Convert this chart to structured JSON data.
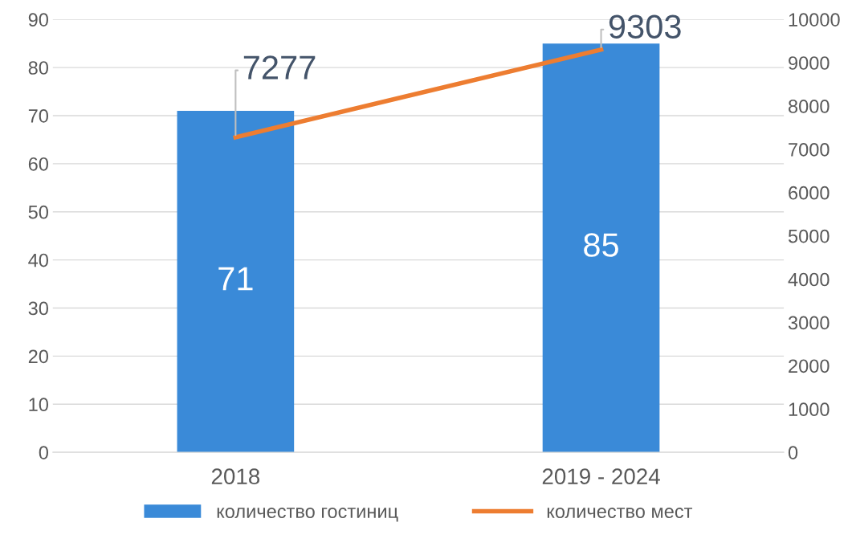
{
  "chart_data": {
    "type": "bar",
    "categories": [
      "2018",
      "2019 - 2024"
    ],
    "series": [
      {
        "name": "количество гостиниц",
        "color": "#3a8ad8",
        "values": [
          71,
          85
        ]
      },
      {
        "name": "количество мест",
        "type": "line",
        "axis": "y2",
        "color": "#ed7d31",
        "values": [
          7277,
          9303
        ]
      }
    ],
    "ylim": [
      0,
      90
    ],
    "yticks": [
      0,
      10,
      20,
      30,
      40,
      50,
      60,
      70,
      80,
      90
    ],
    "y2lim": [
      0,
      10000
    ],
    "y2ticks": [
      0,
      1000,
      2000,
      3000,
      4000,
      5000,
      6000,
      7000,
      8000,
      9000,
      10000
    ],
    "grid": "y",
    "legend": "bottom",
    "data_labels": true,
    "marker": "none",
    "line_style": "solid"
  }
}
